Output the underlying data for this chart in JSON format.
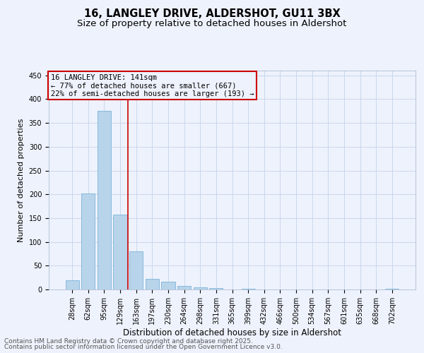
{
  "title": "16, LANGLEY DRIVE, ALDERSHOT, GU11 3BX",
  "subtitle": "Size of property relative to detached houses in Aldershot",
  "xlabel": "Distribution of detached houses by size in Aldershot",
  "ylabel": "Number of detached properties",
  "categories": [
    "28sqm",
    "62sqm",
    "95sqm",
    "129sqm",
    "163sqm",
    "197sqm",
    "230sqm",
    "264sqm",
    "298sqm",
    "331sqm",
    "365sqm",
    "399sqm",
    "432sqm",
    "466sqm",
    "500sqm",
    "534sqm",
    "567sqm",
    "601sqm",
    "635sqm",
    "668sqm",
    "702sqm"
  ],
  "values": [
    19,
    202,
    375,
    158,
    80,
    23,
    16,
    8,
    5,
    3,
    0,
    2,
    0,
    0,
    0,
    0,
    0,
    0,
    0,
    0,
    2
  ],
  "bar_color": "#b8d4ea",
  "bar_edge_color": "#6aaad4",
  "grid_color": "#c8d8ec",
  "background_color": "#eef2fc",
  "annotation_box_text": "16 LANGLEY DRIVE: 141sqm\n← 77% of detached houses are smaller (667)\n22% of semi-detached houses are larger (193) →",
  "annotation_box_color": "#cc0000",
  "vline_x_index": 3.5,
  "vline_color": "#cc0000",
  "ylim": [
    0,
    460
  ],
  "yticks": [
    0,
    50,
    100,
    150,
    200,
    250,
    300,
    350,
    400,
    450
  ],
  "footer_line1": "Contains HM Land Registry data © Crown copyright and database right 2025.",
  "footer_line2": "Contains public sector information licensed under the Open Government Licence v3.0.",
  "title_fontsize": 10.5,
  "subtitle_fontsize": 9.5,
  "xlabel_fontsize": 8.5,
  "ylabel_fontsize": 8,
  "tick_fontsize": 7,
  "annotation_fontsize": 7.5,
  "footer_fontsize": 6.5
}
